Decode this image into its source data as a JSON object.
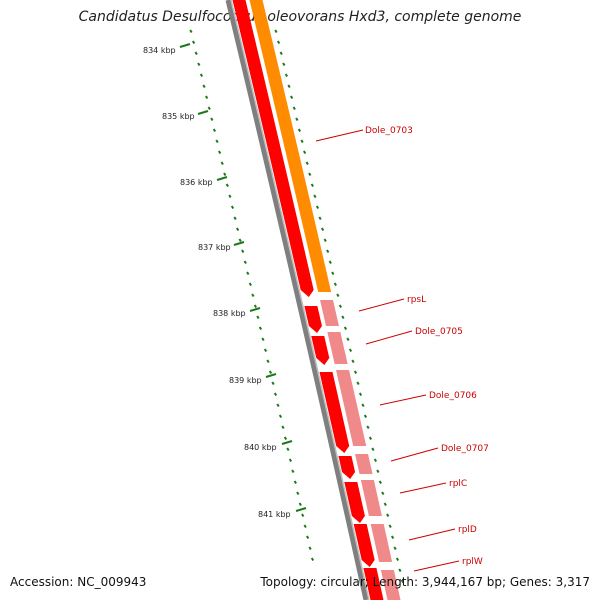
{
  "title": "Candidatus Desulfococcus oleovorans Hxd3, complete genome",
  "footer": {
    "accession": "Accession: NC_009943",
    "summary": "Topology: circular; Length: 3,944,167 bp; Genes: 3,317"
  },
  "colors": {
    "backbone": "#808080",
    "gene_forward": "#ff0000",
    "gene_reverse": "#f08a8a",
    "rrna_like": "#ff8c00",
    "ticks": "#1a7a1a",
    "label": "#cc0000"
  },
  "ticks": [
    {
      "label": "834 kbp"
    },
    {
      "label": "835 kbp"
    },
    {
      "label": "836 kbp"
    },
    {
      "label": "837 kbp"
    },
    {
      "label": "838 kbp"
    },
    {
      "label": "839 kbp"
    },
    {
      "label": "840 kbp"
    },
    {
      "label": "841 kbp"
    }
  ],
  "genes": [
    {
      "name": "Dole_0703",
      "strand": "forward-large"
    },
    {
      "name": "rpsL",
      "strand": "reverse"
    },
    {
      "name": "Dole_0705",
      "strand": "reverse"
    },
    {
      "name": "Dole_0706",
      "strand": "reverse"
    },
    {
      "name": "Dole_0707",
      "strand": "reverse"
    },
    {
      "name": "rplC",
      "strand": "reverse"
    },
    {
      "name": "rplD",
      "strand": "reverse"
    },
    {
      "name": "rplW",
      "strand": "reverse"
    }
  ]
}
